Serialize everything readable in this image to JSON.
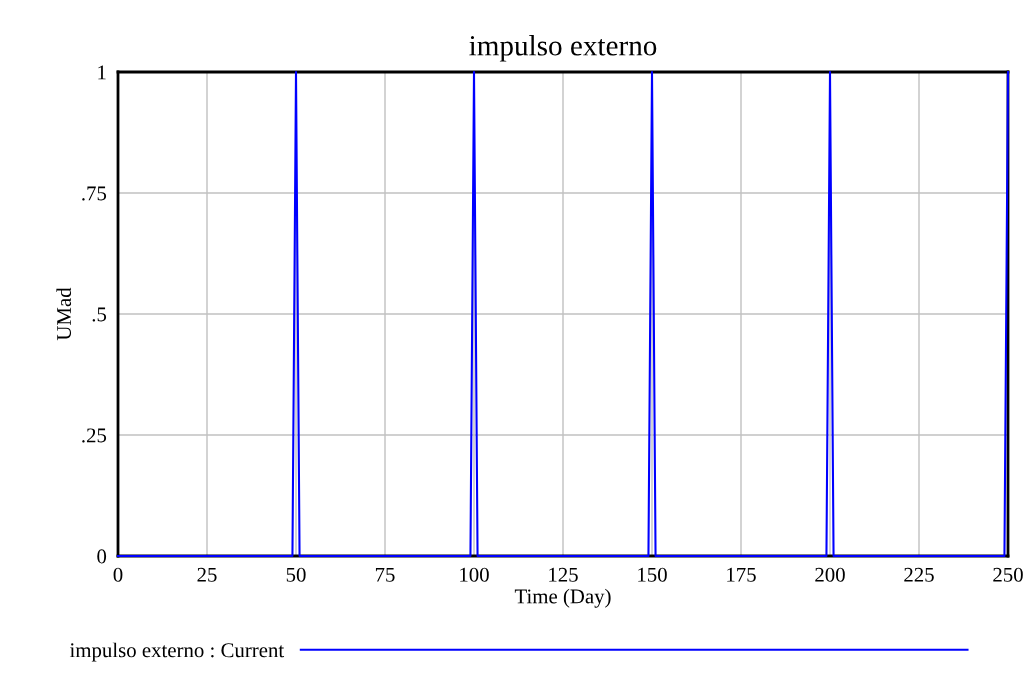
{
  "chart_data": {
    "type": "line",
    "title": "impulso externo",
    "xlabel": "Time (Day)",
    "ylabel": "UMad",
    "x": [
      0,
      49,
      50,
      51,
      99,
      100,
      101,
      149,
      150,
      151,
      199,
      200,
      201,
      249,
      250
    ],
    "series": [
      {
        "name": "impulso externo : Current",
        "color": "#0000ff",
        "values": [
          0,
          0,
          1,
          0,
          0,
          1,
          0,
          0,
          1,
          0,
          0,
          1,
          0,
          0,
          1
        ]
      }
    ],
    "xlim": [
      0,
      250
    ],
    "xticks": [
      0,
      25,
      50,
      75,
      100,
      125,
      150,
      175,
      200,
      225,
      250
    ],
    "ylim": [
      0,
      1
    ],
    "yticks": [
      {
        "value": 0,
        "label": "0"
      },
      {
        "value": 0.25,
        "label": ".25"
      },
      {
        "value": 0.5,
        "label": ".5"
      },
      {
        "value": 0.75,
        "label": ".75"
      },
      {
        "value": 1,
        "label": "1"
      }
    ],
    "grid": true,
    "legend": "bottom",
    "marker": "none",
    "line_style": "solid"
  }
}
